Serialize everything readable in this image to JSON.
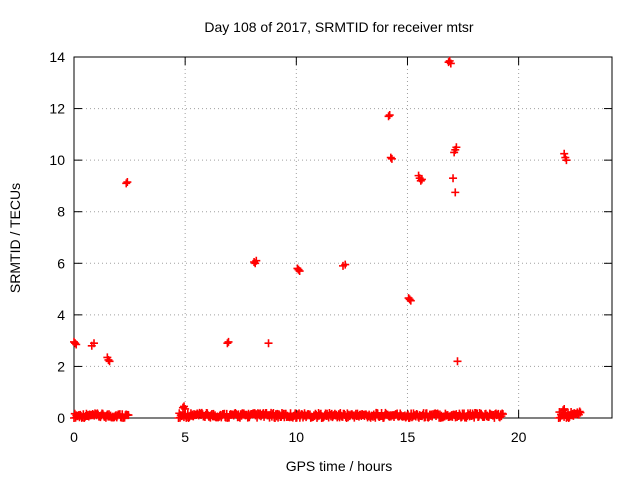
{
  "chart_data": {
    "type": "scatter",
    "title": "Day 108 of 2017, SRMTID for receiver mtsr",
    "xlabel": "GPS time / hours",
    "ylabel": "SRMTID / TECUs",
    "xlim": [
      0,
      24.2
    ],
    "ylim": [
      0,
      14
    ],
    "xticks": [
      0,
      5,
      10,
      15,
      20
    ],
    "yticks": [
      0,
      2,
      4,
      6,
      8,
      10,
      12,
      14
    ],
    "grid": true,
    "marker": "plus",
    "color": "#ff0000",
    "series": [
      {
        "name": "SRMTID",
        "baseline_segments": [
          {
            "x_start": 0.0,
            "x_end": 2.45,
            "y_min": 0.0,
            "y_max": 0.18
          },
          {
            "x_start": 4.7,
            "x_end": 19.3,
            "y_min": 0.0,
            "y_max": 0.2
          },
          {
            "x_start": 21.8,
            "x_end": 22.8,
            "y_min": 0.0,
            "y_max": 0.25
          }
        ],
        "points": [
          {
            "x": 0.0,
            "y": 2.95
          },
          {
            "x": 0.05,
            "y": 2.9
          },
          {
            "x": 0.1,
            "y": 2.85
          },
          {
            "x": 0.8,
            "y": 2.8
          },
          {
            "x": 0.9,
            "y": 2.9
          },
          {
            "x": 1.5,
            "y": 2.35
          },
          {
            "x": 1.55,
            "y": 2.25
          },
          {
            "x": 1.6,
            "y": 2.2
          },
          {
            "x": 2.35,
            "y": 9.1
          },
          {
            "x": 2.4,
            "y": 9.15
          },
          {
            "x": 4.9,
            "y": 0.4
          },
          {
            "x": 4.95,
            "y": 0.45
          },
          {
            "x": 5.0,
            "y": 0.35
          },
          {
            "x": 6.9,
            "y": 2.9
          },
          {
            "x": 6.95,
            "y": 2.95
          },
          {
            "x": 8.1,
            "y": 6.05
          },
          {
            "x": 8.15,
            "y": 6.0
          },
          {
            "x": 8.2,
            "y": 6.1
          },
          {
            "x": 8.75,
            "y": 2.9
          },
          {
            "x": 10.1,
            "y": 5.75
          },
          {
            "x": 10.15,
            "y": 5.7
          },
          {
            "x": 10.05,
            "y": 5.8
          },
          {
            "x": 12.1,
            "y": 5.9
          },
          {
            "x": 12.2,
            "y": 5.95
          },
          {
            "x": 14.15,
            "y": 11.7
          },
          {
            "x": 14.2,
            "y": 11.75
          },
          {
            "x": 14.25,
            "y": 10.1
          },
          {
            "x": 14.3,
            "y": 10.05
          },
          {
            "x": 15.1,
            "y": 4.6
          },
          {
            "x": 15.15,
            "y": 4.55
          },
          {
            "x": 15.05,
            "y": 4.65
          },
          {
            "x": 15.5,
            "y": 9.4
          },
          {
            "x": 15.55,
            "y": 9.3
          },
          {
            "x": 15.6,
            "y": 9.2
          },
          {
            "x": 15.65,
            "y": 9.25
          },
          {
            "x": 16.85,
            "y": 13.8
          },
          {
            "x": 16.9,
            "y": 13.85
          },
          {
            "x": 16.95,
            "y": 13.75
          },
          {
            "x": 17.05,
            "y": 9.3
          },
          {
            "x": 17.1,
            "y": 10.3
          },
          {
            "x": 17.15,
            "y": 10.4
          },
          {
            "x": 17.2,
            "y": 10.5
          },
          {
            "x": 17.15,
            "y": 8.75
          },
          {
            "x": 17.25,
            "y": 2.2
          },
          {
            "x": 22.05,
            "y": 10.25
          },
          {
            "x": 22.1,
            "y": 10.1
          },
          {
            "x": 22.15,
            "y": 10.0
          },
          {
            "x": 22.0,
            "y": 0.3
          },
          {
            "x": 22.05,
            "y": 0.35
          }
        ]
      }
    ]
  }
}
